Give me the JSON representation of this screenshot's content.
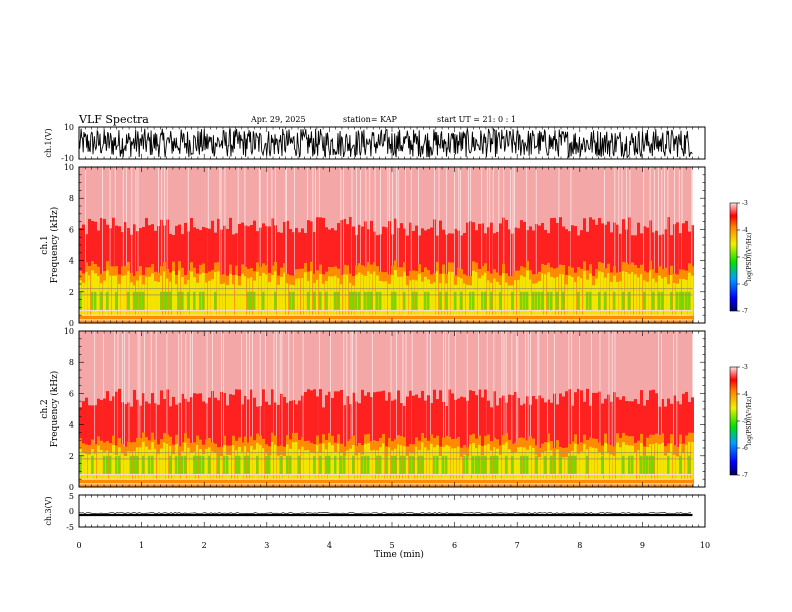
{
  "header": {
    "title": "VLF Spectra",
    "date": "Apr. 29, 2025",
    "station": "station= KAP",
    "start_ut": "start  UT  =   21: 0  : 1"
  },
  "chart_data": [
    {
      "type": "line",
      "panel": "ch1-waveform",
      "ylabel": "ch.1(V)",
      "ylim": [
        -10,
        10
      ],
      "ytick_labels": [
        "10",
        "-10"
      ],
      "xlim": [
        0,
        10
      ],
      "data_end_min": 9.8,
      "description_of_values": "dense oscillation spanning roughly -9 to +9 V for the full record"
    },
    {
      "type": "heatmap",
      "panel": "ch1-spectrogram",
      "ylabel": "Frequency  (kHz)",
      "channel_label": "ch.1",
      "ylim": [
        0,
        10
      ],
      "ytick_labels": [
        "0",
        "2",
        "4",
        "6",
        "8",
        "10"
      ],
      "xlim": [
        0,
        10
      ],
      "data_end_min": 9.8,
      "colorbar": {
        "label": "log(PSD)(V²/Hz)",
        "range": [
          -7,
          -3
        ],
        "tick_labels": [
          "-3",
          "-4",
          "-5",
          "-6",
          "-7"
        ]
      },
      "bands_khz": {
        "yellow_top": 3.5,
        "orange_top": 5.0,
        "light_red_top": 10
      }
    },
    {
      "type": "heatmap",
      "panel": "ch2-spectrogram",
      "ylabel": "Frequency  (kHz)",
      "channel_label": "ch.2",
      "ylim": [
        0,
        10
      ],
      "ytick_labels": [
        "0",
        "2",
        "4",
        "6",
        "8",
        "10"
      ],
      "xlim": [
        0,
        10
      ],
      "data_end_min": 9.8,
      "colorbar": {
        "label": "log(PSD)(V²/Hz)",
        "range": [
          -7,
          -3
        ],
        "tick_labels": [
          "-3",
          "-4",
          "-5",
          "-6",
          "-7"
        ]
      },
      "bands_khz": {
        "yellow_top": 3.0,
        "orange_top": 4.5,
        "light_red_top": 10
      }
    },
    {
      "type": "line",
      "panel": "ch3-waveform",
      "ylabel": "ch.3(V)",
      "ylim": [
        -5,
        5
      ],
      "ytick_labels": [
        "5",
        "0",
        "-5"
      ],
      "xlim": [
        0,
        10
      ],
      "data_end_min": 9.8,
      "level_v": [
        -0.9,
        -1.6
      ]
    }
  ],
  "x_axis": {
    "label": "Time  (min)",
    "tick_labels": [
      "0",
      "1",
      "2",
      "3",
      "4",
      "5",
      "6",
      "7",
      "8",
      "9",
      "10"
    ]
  },
  "colors": {
    "spec_light": "#f4a7a7",
    "spec_red": "#ff2020",
    "spec_orange": "#ff8c00",
    "spec_yellow": "#f2e600",
    "spec_green": "#7cd400"
  }
}
